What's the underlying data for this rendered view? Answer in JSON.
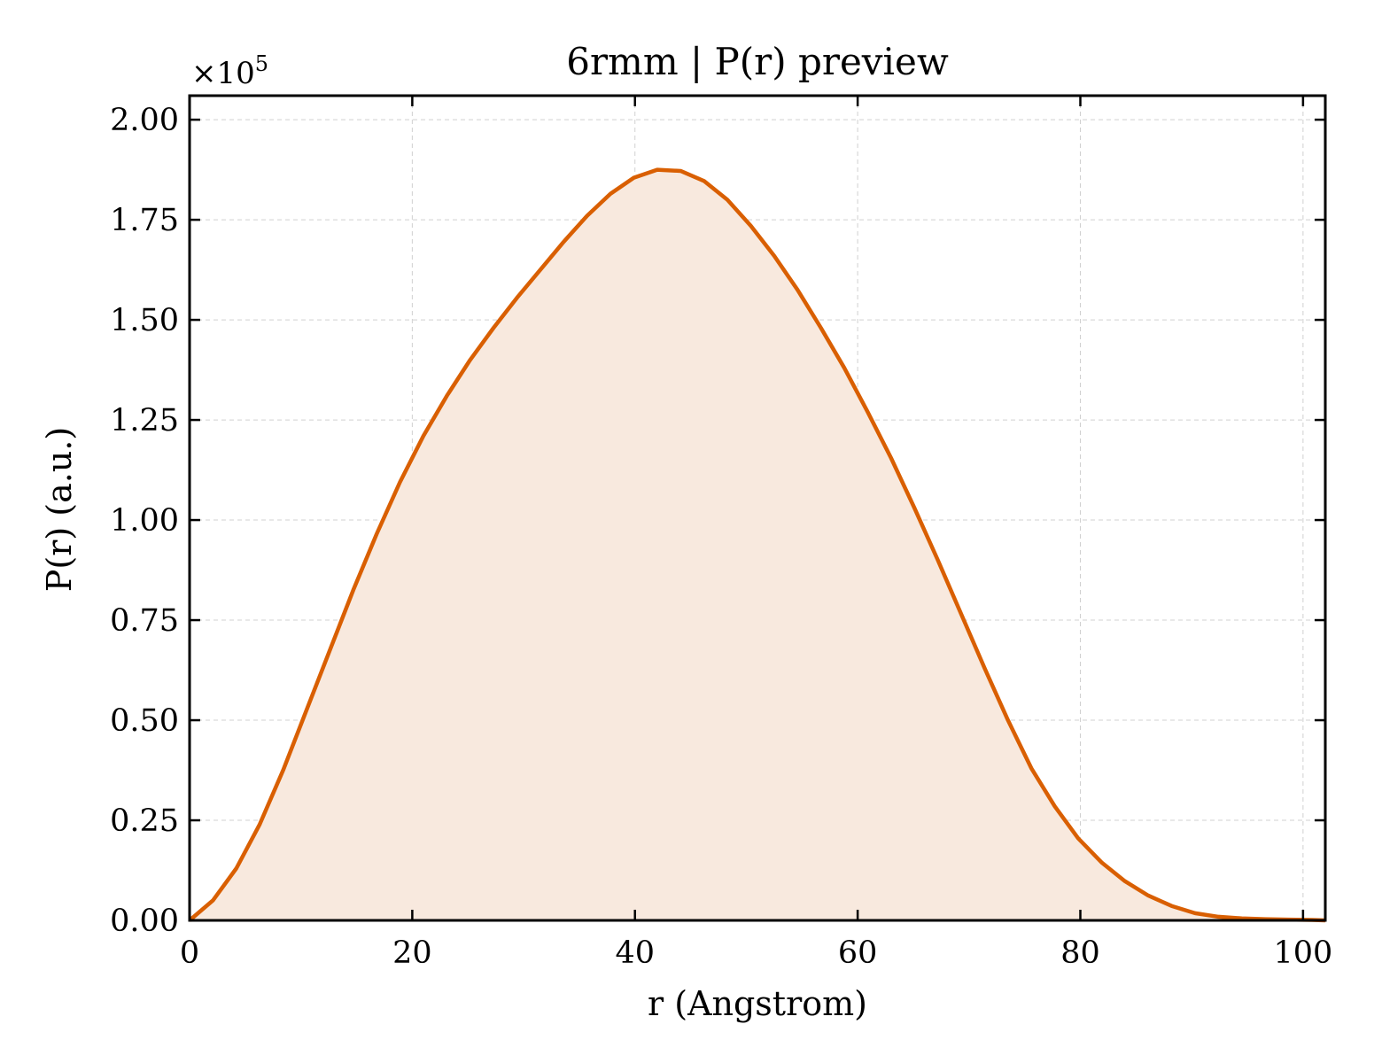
{
  "chart_data": {
    "type": "area",
    "title": "6rmm | P(r) preview",
    "xlabel": "r (Angstrom)",
    "ylabel": "P(r) (a.u.)",
    "y_offset_label": "×10",
    "y_offset_exponent": "5",
    "xlim": [
      0,
      102
    ],
    "ylim": [
      0,
      2.06
    ],
    "y_scale": 100000,
    "x_ticks": [
      0,
      20,
      40,
      60,
      80,
      100
    ],
    "x_tick_labels": [
      "0",
      "20",
      "40",
      "60",
      "80",
      "100"
    ],
    "y_ticks": [
      0,
      0.25,
      0.5,
      0.75,
      1.0,
      1.25,
      1.5,
      1.75,
      2.0
    ],
    "y_tick_labels": [
      "0.00",
      "0.25",
      "0.50",
      "0.75",
      "1.00",
      "1.25",
      "1.50",
      "1.75",
      "2.00"
    ],
    "grid": true,
    "line_color": "#d95f02",
    "fill_color": "#f8e9de",
    "series": [
      {
        "x": [
          0,
          2.1,
          4.2,
          6.3,
          8.4,
          10.5,
          12.6,
          14.7,
          16.8,
          18.9,
          21.0,
          23.1,
          25.2,
          27.3,
          29.4,
          31.5,
          33.6,
          35.7,
          37.8,
          39.9,
          42.0,
          44.1,
          46.2,
          48.3,
          50.4,
          52.5,
          54.6,
          56.7,
          58.8,
          60.9,
          63.0,
          65.1,
          67.2,
          69.3,
          71.4,
          73.5,
          75.6,
          77.7,
          79.8,
          81.9,
          84.0,
          86.1,
          88.2,
          90.3,
          92.4,
          94.5,
          96.6,
          98.7,
          100.8,
          102.0
        ],
        "y": [
          0.0,
          0.05,
          0.13,
          0.24,
          0.375,
          0.525,
          0.675,
          0.825,
          0.965,
          1.095,
          1.21,
          1.31,
          1.4,
          1.48,
          1.555,
          1.625,
          1.695,
          1.76,
          1.815,
          1.855,
          1.875,
          1.872,
          1.847,
          1.8,
          1.735,
          1.66,
          1.575,
          1.48,
          1.38,
          1.27,
          1.155,
          1.03,
          0.9,
          0.765,
          0.63,
          0.5,
          0.38,
          0.285,
          0.205,
          0.145,
          0.098,
          0.062,
          0.036,
          0.018,
          0.009,
          0.005,
          0.003,
          0.002,
          0.001,
          0.0
        ]
      }
    ]
  }
}
